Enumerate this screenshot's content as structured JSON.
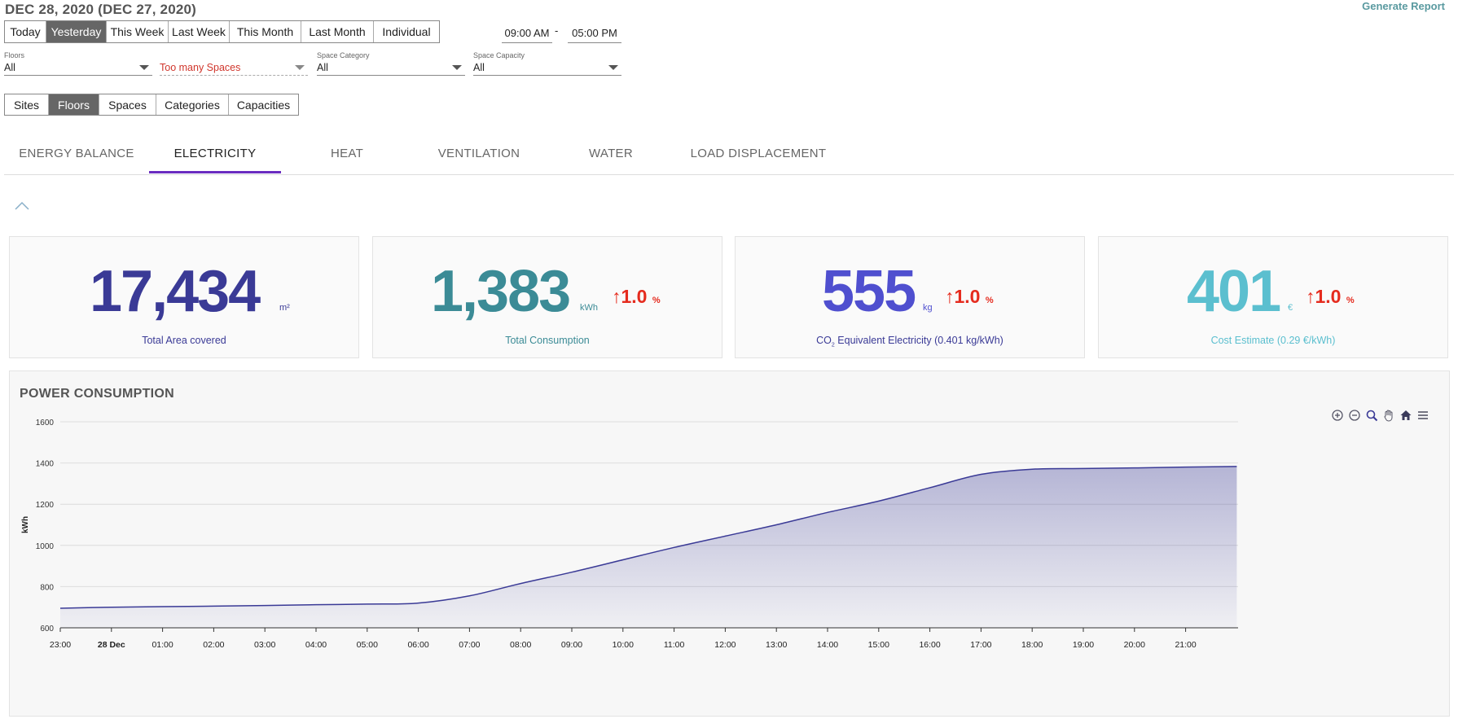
{
  "header": {
    "date_title": "DEC 28, 2020 (DEC 27, 2020)",
    "generate_report": "Generate Report"
  },
  "range_buttons": [
    "Today",
    "Yesterday",
    "This Week",
    "Last Week",
    "This Month",
    "Last Month",
    "Individual"
  ],
  "range_active": "Yesterday",
  "time": {
    "start": "09:00 AM",
    "separator": "-",
    "end": "05:00 PM"
  },
  "filters": {
    "floors": {
      "label": "Floors",
      "value": "All"
    },
    "spaces": {
      "label": "",
      "value": "Too many Spaces"
    },
    "category": {
      "label": "Space Category",
      "value": "All"
    },
    "capacity": {
      "label": "Space Capacity",
      "value": "All"
    }
  },
  "view_buttons": [
    "Sites",
    "Floors",
    "Spaces",
    "Categories",
    "Capacities"
  ],
  "view_active": "Floors",
  "tabs": [
    "ENERGY BALANCE",
    "ELECTRICITY",
    "HEAT",
    "VENTILATION",
    "WATER",
    "LOAD DISPLACEMENT"
  ],
  "tab_active": "ELECTRICITY",
  "cards": {
    "area": {
      "value": "17,434",
      "unit": "m²",
      "label": "Total Area covered",
      "color": "#3a3a96"
    },
    "consumption": {
      "value": "1,383",
      "unit": "kWh",
      "delta_arrow": "↑",
      "delta": "1.0",
      "delta_unit": "%",
      "label": "Total Consumption",
      "color": "#3b8b96"
    },
    "co2": {
      "value": "555",
      "unit": "kg",
      "delta_arrow": "↑",
      "delta": "1.0",
      "delta_unit": "%",
      "label_prefix": "CO",
      "label_sub": "2",
      "label_rest": " Equivalent Electricity (0.401 kg/kWh)",
      "color": "#4f4fcf",
      "label_color": "#3a3a96"
    },
    "cost": {
      "value": "401",
      "unit": "€",
      "delta_arrow": "↑",
      "delta": "1.0",
      "delta_unit": "%",
      "label": "Cost Estimate (0.29 €/kWh)",
      "color": "#5bbfcf"
    }
  },
  "chart": {
    "title": "POWER CONSUMPTION",
    "toolbar_icons": [
      "zoom-in-icon",
      "zoom-out-icon",
      "magnifier-icon",
      "pan-hand-icon",
      "home-icon",
      "menu-icon"
    ]
  },
  "chart_data": {
    "type": "area",
    "title": "POWER CONSUMPTION",
    "ylabel": "kWh",
    "xlabel": "",
    "ylim": [
      600,
      1600
    ],
    "yticks": [
      600,
      800,
      1000,
      1200,
      1400,
      1600
    ],
    "xtick_labels": [
      "23:00",
      "28 Dec",
      "01:00",
      "02:00",
      "03:00",
      "04:00",
      "05:00",
      "06:00",
      "07:00",
      "08:00",
      "09:00",
      "10:00",
      "11:00",
      "12:00",
      "13:00",
      "14:00",
      "15:00",
      "16:00",
      "17:00",
      "18:00",
      "19:00",
      "20:00",
      "21:00"
    ],
    "bold_tick": "28 Dec",
    "x_hours": [
      0,
      1,
      2,
      3,
      4,
      5,
      6,
      7,
      8,
      9,
      10,
      11,
      12,
      13,
      14,
      15,
      16,
      17,
      18,
      19,
      20,
      21,
      22,
      23
    ],
    "values": [
      695,
      700,
      703,
      705,
      708,
      712,
      715,
      720,
      755,
      815,
      870,
      930,
      990,
      1045,
      1100,
      1160,
      1215,
      1280,
      1345,
      1370,
      1373,
      1376,
      1380,
      1383
    ],
    "grid": true,
    "legend": "none",
    "line_color": "#3a3a96"
  }
}
